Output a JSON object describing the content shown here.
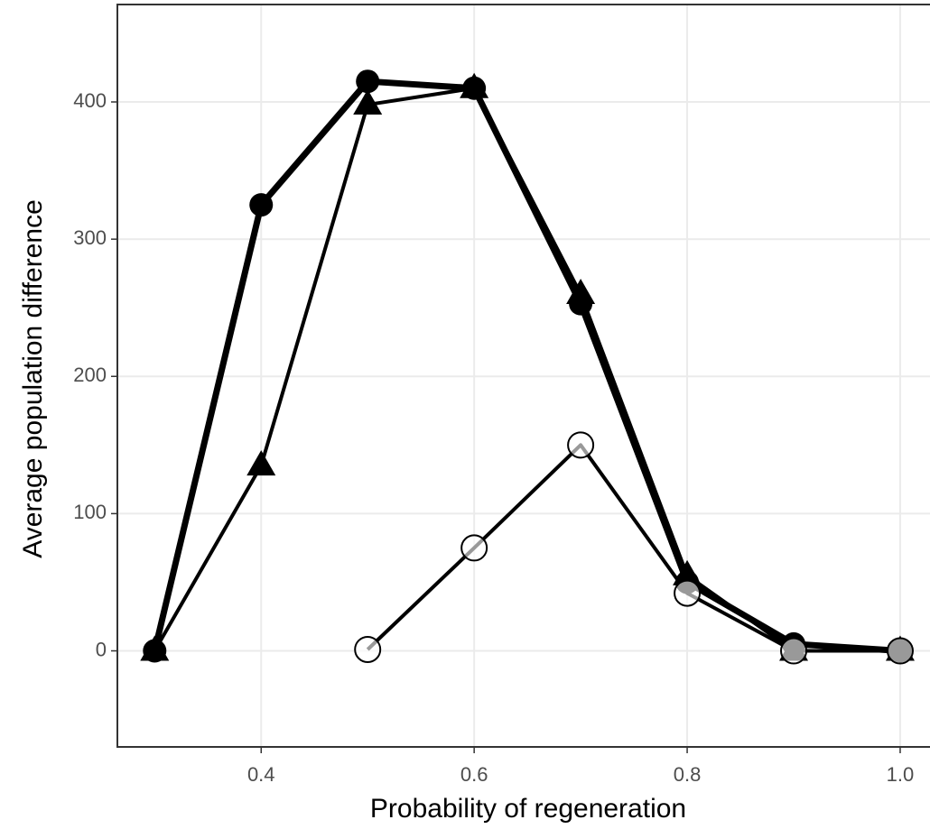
{
  "chart_data": {
    "type": "line",
    "xlabel": "Probability of regeneration",
    "ylabel": "Average population difference",
    "x": [
      0.3,
      0.4,
      0.5,
      0.6,
      0.7,
      0.8,
      0.9,
      1.0
    ],
    "series": [
      {
        "color": "#000000",
        "marker": "circle",
        "values": [
          0,
          325,
          415,
          410,
          253,
          50,
          5,
          0
        ]
      },
      {
        "color": "#000000",
        "marker": "triangle",
        "values": [
          0,
          135,
          398,
          410,
          260,
          55,
          0,
          0
        ]
      },
      {
        "color": "#000000",
        "marker": "open-circle",
        "values": [
          null,
          null,
          1,
          75,
          150,
          42,
          0,
          0
        ]
      }
    ],
    "xlim": [
      0.265,
      1.028
    ],
    "ylim": [
      -70,
      471
    ],
    "xticks": [
      0.4,
      0.6,
      0.8,
      {
        "value": 1.0,
        "label": "1.0"
      }
    ],
    "yticks": [
      0,
      100,
      200,
      300,
      400
    ],
    "grid": true
  }
}
